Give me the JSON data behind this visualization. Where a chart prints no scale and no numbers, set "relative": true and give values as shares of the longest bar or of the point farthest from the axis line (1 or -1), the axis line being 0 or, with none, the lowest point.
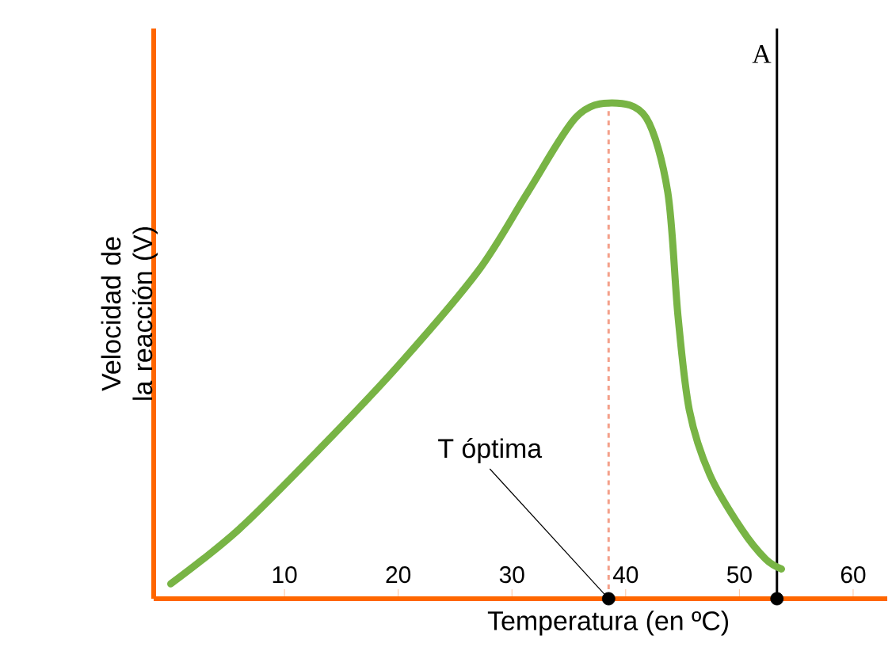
{
  "chart_data": {
    "type": "line",
    "relative": true,
    "xlabel": "Temperatura (en ºC)",
    "ylabel": "Velocidad de la reacción (V)",
    "xlim": [
      -1.5,
      63
    ],
    "xticks": [
      10,
      20,
      30,
      40,
      50,
      60
    ],
    "grid": false,
    "marker": "none",
    "line_style": "solid",
    "series": [
      {
        "color": "#78b445",
        "x": [
          0,
          6,
          13,
          20,
          27,
          31.4,
          35.6,
          38.8,
          41.8,
          43.7,
          44.6,
          45.6,
          47.4,
          50.2,
          52.3,
          53.7
        ],
        "values": [
          0.03,
          0.14,
          0.3,
          0.47,
          0.66,
          0.82,
          0.97,
          1.0,
          0.97,
          0.82,
          0.57,
          0.38,
          0.25,
          0.14,
          0.08,
          0.06
        ]
      },
      {
        "type": "scatter",
        "color": "#000000",
        "marker": "circle",
        "x": [
          38.5,
          53.3
        ],
        "values": [
          0,
          0
        ]
      }
    ],
    "ref_lines": [
      {
        "axis": "x",
        "value": 38.5,
        "color": "#f4a08a",
        "line_style": "dashed"
      },
      {
        "axis": "x",
        "value": 53.3,
        "label": "A",
        "color": "#000000",
        "line_style": "solid"
      }
    ],
    "annotations": [
      {
        "text": "T óptima",
        "x": 38.5,
        "y": 0
      }
    ]
  }
}
